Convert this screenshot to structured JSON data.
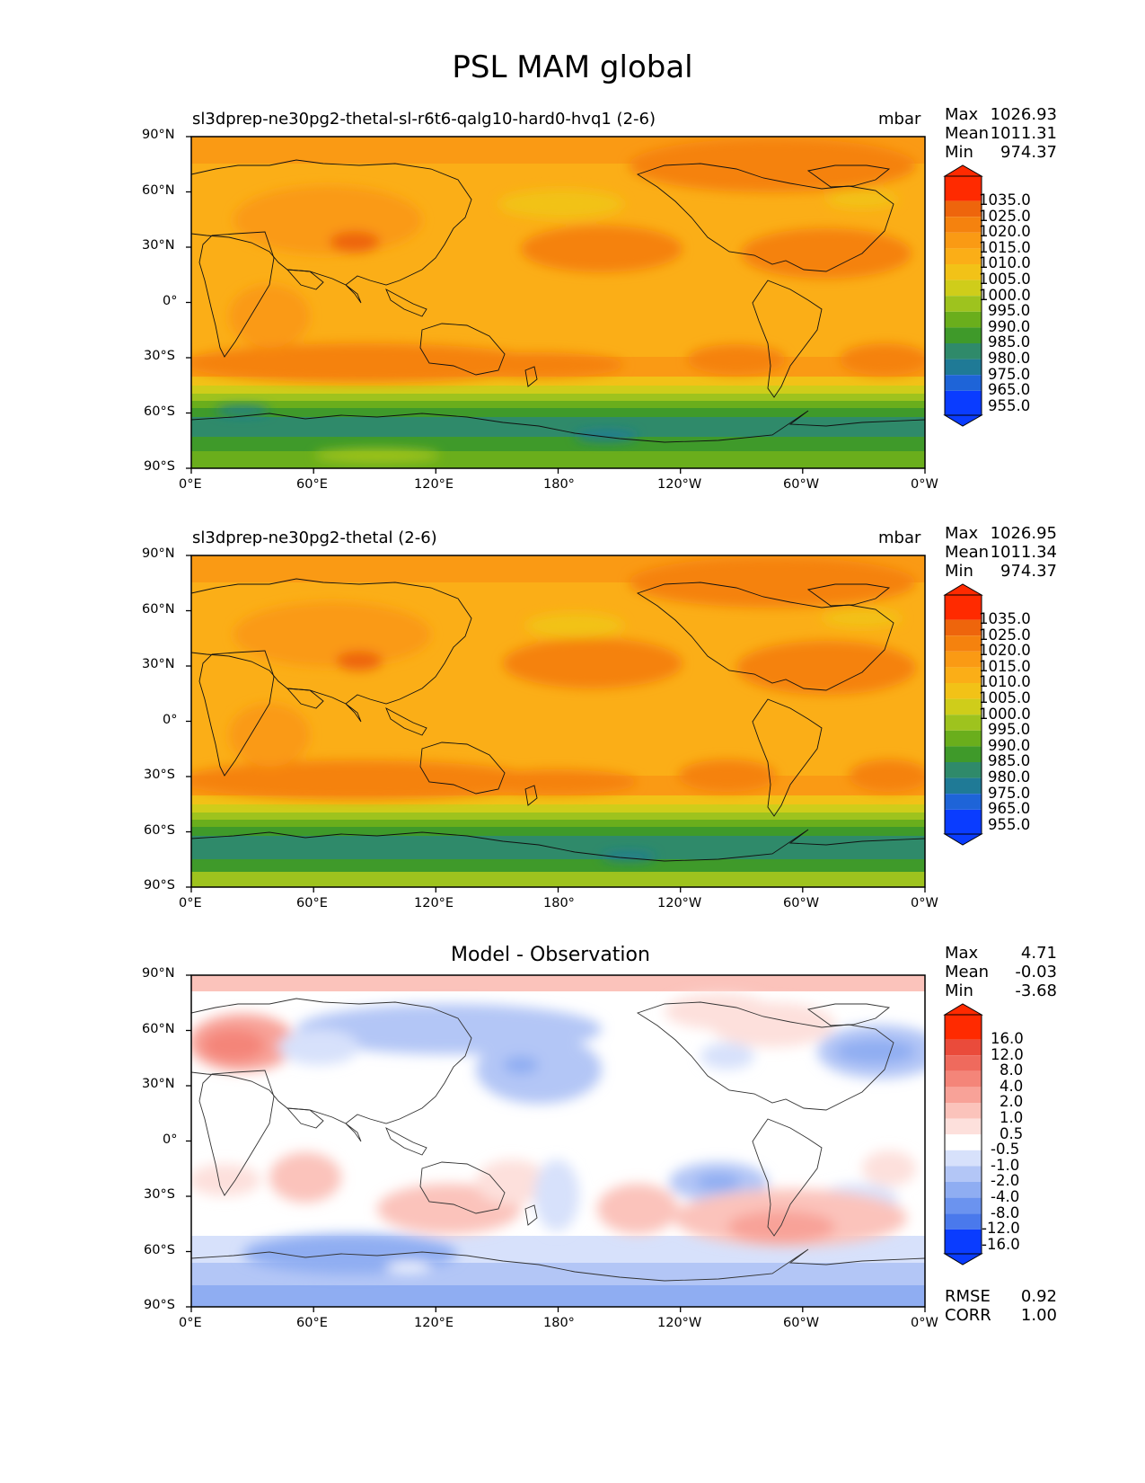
{
  "figure_title": "PSL MAM global",
  "lat_ticks": [
    "90°N",
    "60°N",
    "30°N",
    "0°",
    "30°S",
    "60°S",
    "90°S"
  ],
  "lon_ticks": [
    "0°E",
    "60°E",
    "120°E",
    "180°",
    "120°W",
    "60°W",
    "0°W"
  ],
  "colors": {
    "field": [
      "#0a3cff",
      "#1e64d8",
      "#1f7a96",
      "#2f8a6a",
      "#3f9a2a",
      "#6aae1c",
      "#9ec31e",
      "#cfcd1a",
      "#f2c217",
      "#fbae17",
      "#fa9a14",
      "#f5820e",
      "#ee650c",
      "#ff2a00"
    ],
    "diff": [
      "#0a3cff",
      "#2a5cf5",
      "#4a79ec",
      "#6b93ef",
      "#8fadf2",
      "#b3c6f6",
      "#d7e1fb",
      "#ffffff",
      "#fde0dc",
      "#fbc3bb",
      "#f8a298",
      "#f48579",
      "#ef6a5d",
      "#ea4b3b",
      "#ff2a00"
    ]
  },
  "panels": [
    {
      "id": "test",
      "subtitle": "sl3dprep-ne30pg2-thetal-sl-r6t6-qalg10-hard0-hvq1 (2-6)",
      "units": "mbar",
      "stats": [
        {
          "label": "Max",
          "value": "1026.93"
        },
        {
          "label": "Mean",
          "value": "1011.31"
        },
        {
          "label": "Min",
          "value": "974.37"
        }
      ],
      "colorbar_labels": [
        "1035.0",
        "1025.0",
        "1020.0",
        "1015.0",
        "1010.0",
        "1005.0",
        "1000.0",
        "995.0",
        "990.0",
        "985.0",
        "980.0",
        "975.0",
        "965.0",
        "955.0"
      ]
    },
    {
      "id": "ref",
      "subtitle": "sl3dprep-ne30pg2-thetal (2-6)",
      "units": "mbar",
      "stats": [
        {
          "label": "Max",
          "value": "1026.95"
        },
        {
          "label": "Mean",
          "value": "1011.34"
        },
        {
          "label": "Min",
          "value": "974.37"
        }
      ],
      "colorbar_labels": [
        "1035.0",
        "1025.0",
        "1020.0",
        "1015.0",
        "1010.0",
        "1005.0",
        "1000.0",
        "995.0",
        "990.0",
        "985.0",
        "980.0",
        "975.0",
        "965.0",
        "955.0"
      ]
    },
    {
      "id": "diff",
      "title": "Model - Observation",
      "stats": [
        {
          "label": "Max",
          "value": "4.71"
        },
        {
          "label": "Mean",
          "value": "-0.03"
        },
        {
          "label": "Min",
          "value": "-3.68"
        }
      ],
      "colorbar_labels": [
        "16.0",
        "12.0",
        "8.0",
        "4.0",
        "2.0",
        "1.0",
        "0.5",
        "-0.5",
        "-1.0",
        "-2.0",
        "-4.0",
        "-8.0",
        "-12.0",
        "-16.0"
      ],
      "extra_stats": [
        {
          "label": "RMSE",
          "value": "0.92"
        },
        {
          "label": "CORR",
          "value": "1.00"
        }
      ]
    }
  ]
}
